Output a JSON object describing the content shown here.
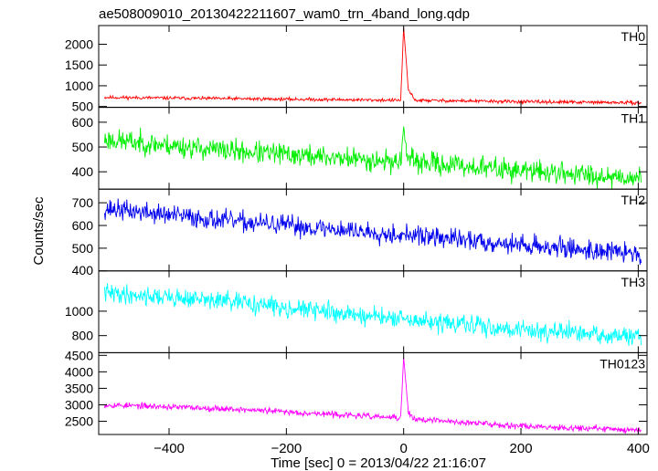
{
  "title": "ae508009010_20130422211607_wam0_trn_4band_long.qdp",
  "chart_data": {
    "type": "line",
    "title": "ae508009010_20130422211607_wam0_trn_4band_long.qdp",
    "xlabel": "Time [sec] 0 = 2013/04/22 21:16:07",
    "ylabel": "Counts/sec",
    "xlim": [
      -520,
      415
    ],
    "x_ticks": [
      -400,
      -200,
      0,
      200,
      400
    ],
    "x_tick_labels": [
      "−400",
      "−200",
      "0",
      "200",
      "400"
    ],
    "grid": false,
    "panels": [
      {
        "name": "TH0",
        "color": "#ff0000",
        "ylim": [
          480,
          2450
        ],
        "y_ticks": [
          500,
          1000,
          1500,
          2000
        ],
        "trend": [
          [
            -510,
            720
          ],
          [
            -300,
            690
          ],
          [
            -5,
            650
          ],
          [
            0,
            2400
          ],
          [
            8,
            900
          ],
          [
            20,
            650
          ],
          [
            200,
            615
          ],
          [
            405,
            590
          ]
        ],
        "noise": 20,
        "seed": 11
      },
      {
        "name": "TH1",
        "color": "#00ee00",
        "ylim": [
          330,
          660
        ],
        "y_ticks": [
          400,
          500,
          600
        ],
        "trend": [
          [
            -510,
            530
          ],
          [
            -300,
            485
          ],
          [
            -5,
            440
          ],
          [
            0,
            585
          ],
          [
            6,
            455
          ],
          [
            15,
            440
          ],
          [
            200,
            405
          ],
          [
            405,
            375
          ]
        ],
        "noise": 22,
        "seed": 23
      },
      {
        "name": "TH2",
        "color": "#0000ee",
        "ylim": [
          400,
          760
        ],
        "y_ticks": [
          400,
          500,
          600,
          700
        ],
        "trend": [
          [
            -510,
            675
          ],
          [
            -300,
            620
          ],
          [
            0,
            560
          ],
          [
            200,
            515
          ],
          [
            405,
            475
          ]
        ],
        "noise": 22,
        "seed": 37
      },
      {
        "name": "TH3",
        "color": "#00ffff",
        "ylim": [
          660,
          1330
        ],
        "y_ticks": [
          800,
          1000
        ],
        "trend": [
          [
            -510,
            1150
          ],
          [
            -300,
            1080
          ],
          [
            0,
            930
          ],
          [
            200,
            850
          ],
          [
            405,
            780
          ]
        ],
        "noise": 38,
        "seed": 41
      },
      {
        "name": "TH0123",
        "color": "#ff00ff",
        "ylim": [
          2100,
          4580
        ],
        "y_ticks": [
          2500,
          3000,
          3500,
          4000,
          4500
        ],
        "trend": [
          [
            -510,
            3000
          ],
          [
            -300,
            2880
          ],
          [
            -5,
            2600
          ],
          [
            0,
            4450
          ],
          [
            8,
            2750
          ],
          [
            20,
            2560
          ],
          [
            200,
            2360
          ],
          [
            405,
            2230
          ]
        ],
        "noise": 45,
        "seed": 53
      }
    ]
  }
}
